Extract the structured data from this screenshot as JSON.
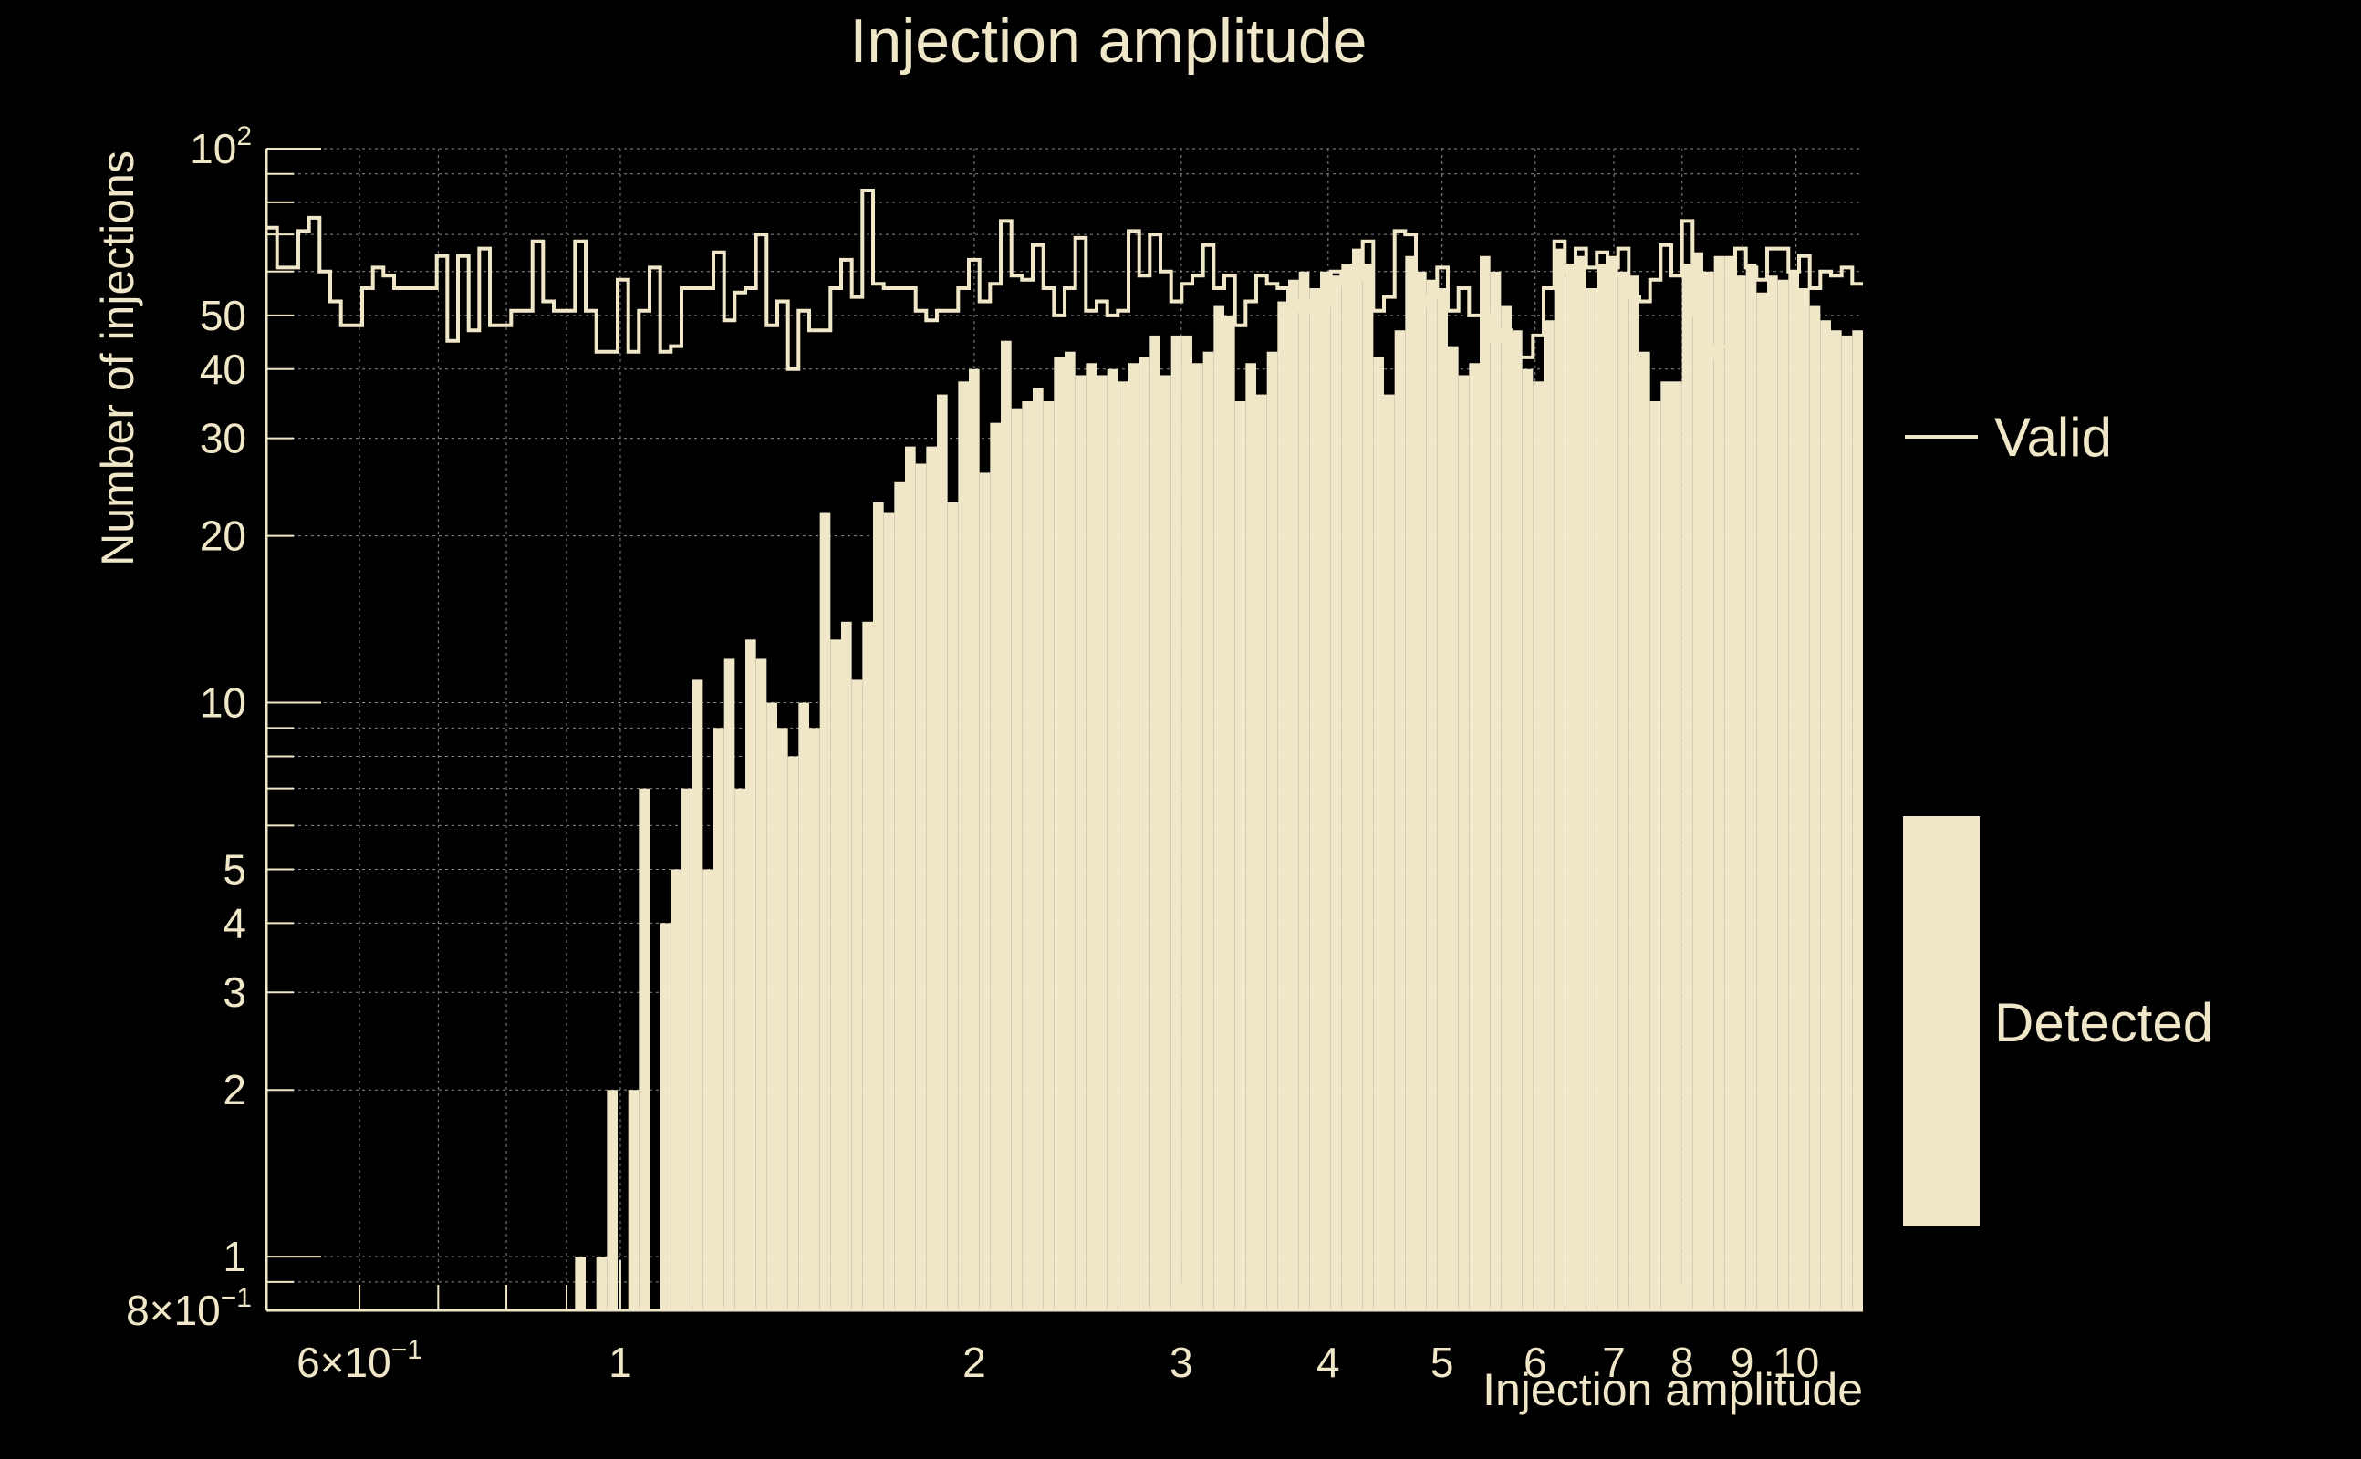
{
  "colors": {
    "background": "#000000",
    "foreground": "#f0e6c8",
    "grid": "#8a8a8a"
  },
  "chart_data": {
    "type": "bar",
    "title": "Injection amplitude",
    "xlabel": "Injection amplitude",
    "ylabel": "Number of injections",
    "xscale": "log",
    "yscale": "log",
    "xlim": [
      0.5,
      11.4
    ],
    "ylim": [
      0.8,
      100
    ],
    "grid": true,
    "legend_position": "right",
    "x_ticks": [
      {
        "value": 0.6,
        "label": "6×10",
        "exp": "−1"
      },
      {
        "value": 1,
        "label": "1"
      },
      {
        "value": 2,
        "label": "2"
      },
      {
        "value": 3,
        "label": "3"
      },
      {
        "value": 4,
        "label": "4"
      },
      {
        "value": 5,
        "label": "5"
      },
      {
        "value": 6,
        "label": "6"
      },
      {
        "value": 7,
        "label": "7"
      },
      {
        "value": 8,
        "label": "8"
      },
      {
        "value": 9,
        "label": "9"
      },
      {
        "value": 10,
        "label": "10"
      }
    ],
    "y_ticks": [
      {
        "value": 0.8,
        "label": "8×10",
        "exp": "−1"
      },
      {
        "value": 1,
        "label": "1"
      },
      {
        "value": 2,
        "label": "2"
      },
      {
        "value": 3,
        "label": "3"
      },
      {
        "value": 4,
        "label": "4"
      },
      {
        "value": 5,
        "label": "5"
      },
      {
        "value": 10,
        "label": "10"
      },
      {
        "value": 20,
        "label": "20"
      },
      {
        "value": 30,
        "label": "30"
      },
      {
        "value": 40,
        "label": "40"
      },
      {
        "value": 50,
        "label": "50"
      },
      {
        "value": 100,
        "label": "10",
        "exp": "2"
      }
    ],
    "bins": {
      "x_start": 0.5,
      "x_end": 11.4,
      "count": 150
    },
    "series": [
      {
        "name": "Valid",
        "style": "step",
        "values": [
          72,
          61,
          61,
          71,
          75,
          60,
          53,
          48,
          48,
          56,
          61,
          59,
          56,
          56,
          56,
          56,
          64,
          45,
          64,
          47,
          66,
          48,
          48,
          51,
          51,
          68,
          53,
          51,
          51,
          68,
          51,
          43,
          43,
          58,
          43,
          51,
          61,
          43,
          44,
          56,
          56,
          56,
          65,
          49,
          55,
          56,
          70,
          48,
          53,
          40,
          51,
          47,
          47,
          56,
          63,
          54,
          84,
          57,
          56,
          56,
          56,
          51,
          49,
          51,
          51,
          56,
          63,
          53,
          57,
          74,
          59,
          58,
          67,
          56,
          50,
          56,
          69,
          51,
          53,
          50,
          51,
          71,
          59,
          70,
          60,
          53,
          57,
          59,
          67,
          56,
          59,
          48,
          53,
          59,
          57,
          56,
          53,
          51,
          53,
          52,
          60,
          57,
          58,
          68,
          51,
          54,
          71,
          70,
          52,
          54,
          61,
          51,
          56,
          50,
          50,
          45,
          47,
          42,
          42,
          46,
          56,
          68,
          60,
          66,
          61,
          65,
          61,
          66,
          54,
          53,
          58,
          67,
          59,
          74,
          50,
          42,
          44,
          44,
          66,
          61,
          58,
          66,
          66,
          60,
          64,
          56,
          60,
          59,
          61,
          57
        ]
      },
      {
        "name": "Detected",
        "style": "bar",
        "values": [
          0,
          0,
          0,
          0,
          0,
          0,
          0,
          0,
          0,
          0,
          0,
          0,
          0,
          0,
          0,
          0,
          0,
          0,
          0,
          0,
          0,
          0,
          0,
          0,
          0,
          0,
          0,
          0,
          0,
          1,
          0,
          1,
          2,
          0,
          2,
          7,
          0,
          4,
          5,
          7,
          11,
          5,
          9,
          12,
          7,
          13,
          12,
          10,
          9,
          8,
          10,
          9,
          22,
          13,
          14,
          11,
          14,
          23,
          22,
          25,
          29,
          27,
          29,
          36,
          23,
          38,
          40,
          26,
          32,
          45,
          34,
          35,
          37,
          35,
          42,
          43,
          39,
          41,
          39,
          40,
          38,
          41,
          42,
          46,
          39,
          46,
          46,
          41,
          43,
          52,
          50,
          35,
          41,
          36,
          43,
          53,
          58,
          60,
          56,
          60,
          59,
          62,
          66,
          62,
          42,
          36,
          47,
          64,
          60,
          58,
          56,
          44,
          39,
          41,
          64,
          60,
          52,
          47,
          40,
          38,
          49,
          66,
          62,
          64,
          56,
          62,
          64,
          60,
          59,
          43,
          35,
          38,
          38,
          62,
          65,
          60,
          64,
          64,
          59,
          62,
          55,
          59,
          58,
          60,
          56,
          52,
          49,
          47,
          46,
          47
        ]
      }
    ]
  }
}
